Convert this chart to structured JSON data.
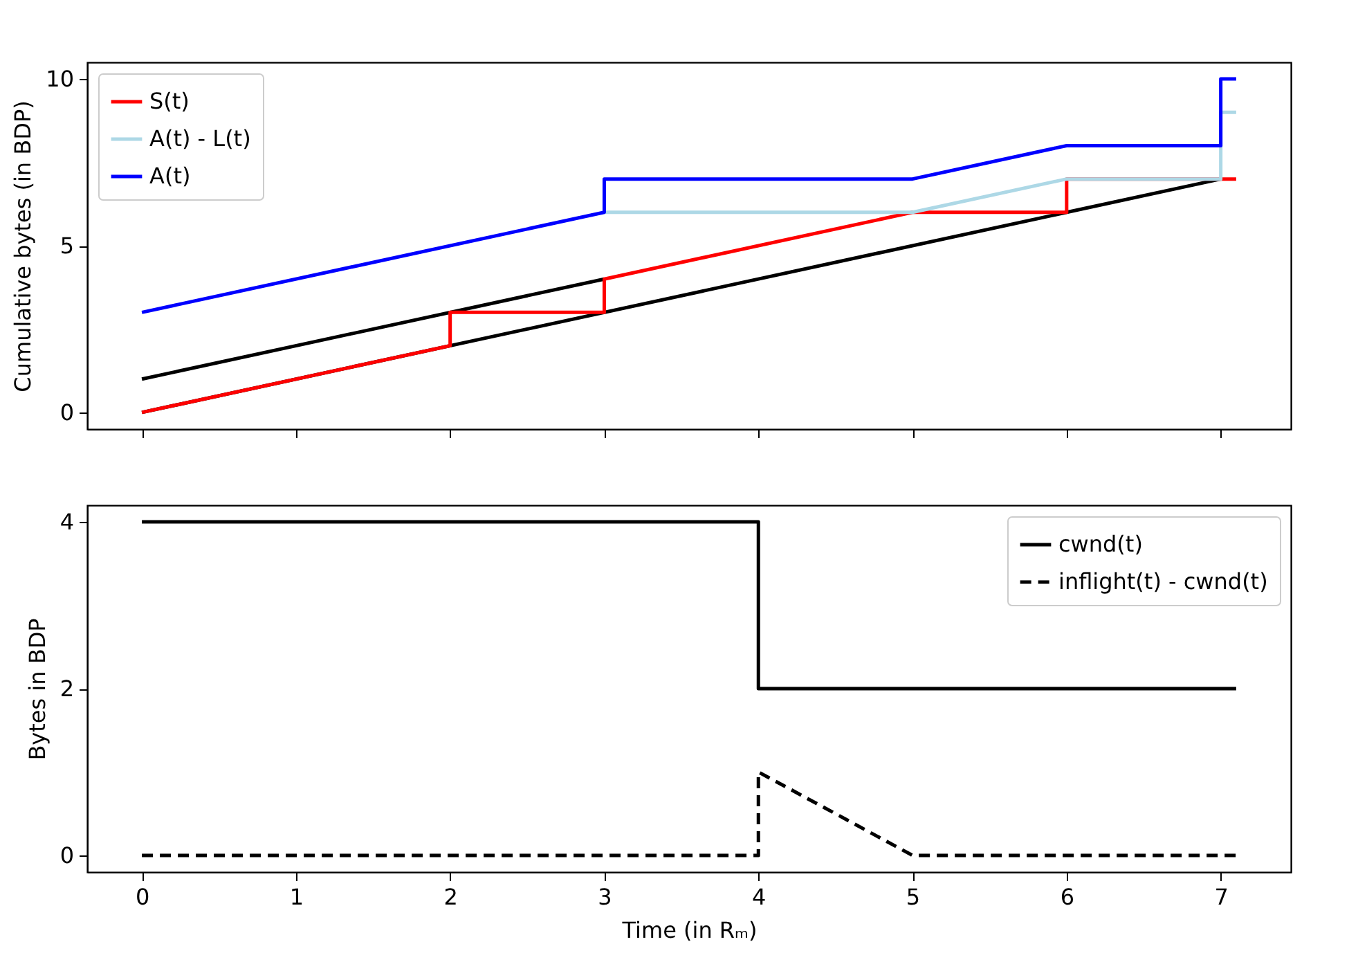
{
  "chart_data": [
    {
      "type": "line",
      "ylabel": "Cumulative bytes (in BDP)",
      "xlim": [
        -0.355,
        7.455
      ],
      "xticks": [
        0,
        1,
        2,
        3,
        4,
        5,
        6,
        7
      ],
      "ylim": [
        -0.5,
        10.5
      ],
      "yticks": [
        0,
        5,
        10
      ],
      "tick_labels": "y",
      "legend": "top left",
      "series": [
        {
          "color": "#000000",
          "x": [
            0,
            7
          ],
          "values": [
            0,
            7
          ]
        },
        {
          "color": "#000000",
          "x": [
            0,
            3
          ],
          "values": [
            1,
            4
          ]
        },
        {
          "name": "S(t)",
          "color": "#ff0000",
          "x": [
            0,
            2,
            2,
            3,
            3,
            5,
            6,
            6,
            7,
            7.1
          ],
          "values": [
            0,
            2,
            3,
            3,
            4,
            6,
            6,
            7,
            7,
            7
          ]
        },
        {
          "name": "A(t) - L(t)",
          "color": "#add8e6",
          "x": [
            3,
            5,
            6,
            7,
            7,
            7.1
          ],
          "values": [
            6,
            6,
            7,
            7,
            9,
            9
          ]
        },
        {
          "name": "A(t)",
          "color": "#0000ff",
          "x": [
            0,
            3,
            3,
            5,
            6,
            7,
            7,
            7.1
          ],
          "values": [
            3,
            6,
            7,
            7,
            8,
            8,
            10,
            10
          ]
        }
      ]
    },
    {
      "type": "line",
      "ylabel": "Bytes in BDP",
      "xlabel": "Time (in Rₘ)",
      "xlim": [
        -0.355,
        7.455
      ],
      "xticks": [
        0,
        1,
        2,
        3,
        4,
        5,
        6,
        7
      ],
      "ylim": [
        -0.2,
        4.2
      ],
      "yticks": [
        0,
        2,
        4
      ],
      "legend": "top right",
      "series": [
        {
          "name": "cwnd(t)",
          "color": "#000000",
          "line_style": "solid",
          "x": [
            0,
            4,
            4,
            7.1
          ],
          "values": [
            4,
            4,
            2,
            2
          ]
        },
        {
          "name": "inflight(t) - cwnd(t)",
          "color": "#000000",
          "line_style": "dashed",
          "x": [
            0,
            4,
            4,
            5,
            7.1
          ],
          "values": [
            0,
            0,
            1,
            0,
            0
          ]
        }
      ]
    }
  ]
}
